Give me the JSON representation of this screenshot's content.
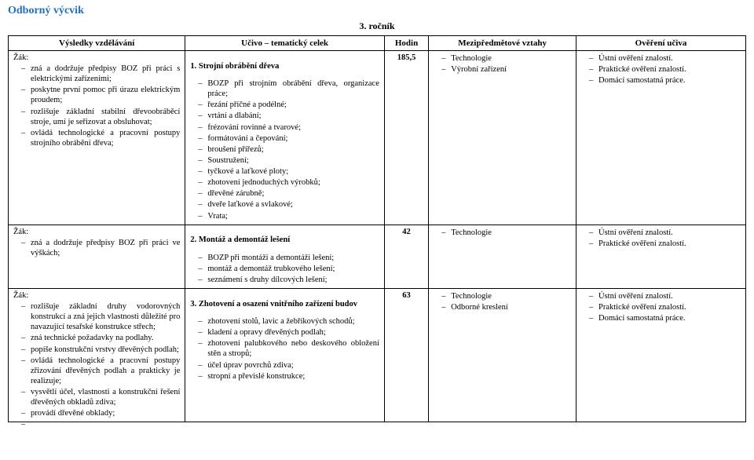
{
  "document": {
    "title": "Odborný výcvik",
    "year": "3. ročník"
  },
  "headers": {
    "vysledky": "Výsledky vzdělávání",
    "ucivo": "Učivo – tematický celek",
    "hodin": "Hodin",
    "mezi": "Mezipředmětové vztahy",
    "over": "Ověření učiva"
  },
  "rows": [
    {
      "zak_label": "Žák:",
      "vysledky": [
        "zná a dodržuje předpisy BOZ při práci s elektrickými zařízeními;",
        "poskytne první pomoc při úrazu elektrickým proudem;",
        "rozlišuje základní stabilní dřevoobráběcí stroje, umí je seřizovat a obsluhovat;",
        "ovládá technologické a pracovní postupy strojního obrábění dřeva;"
      ],
      "ucivo_title": "1.  Strojní obrábění dřeva",
      "ucivo": [
        "BOZP při strojním obrábění dřeva, organizace práce;",
        "řezání příčné a podélné;",
        "vrtání a dlabání;",
        "frézování rovinné a tvarové;",
        "formátování a čepování;",
        "broušení přířezů;",
        "Soustružení;",
        "tyčkové a laťkové ploty;",
        "zhotovení jednoduchých výrobků;",
        "dřevěné zárubně;",
        "dveře laťkové a svlakové;",
        "Vrata;"
      ],
      "hodin": "185,5",
      "mezi": [
        "Technologie",
        "Výrobní zařízení"
      ],
      "over": [
        "Ústní ověření znalostí.",
        "Praktické ověření znalostí.",
        "Domácí samostatná práce."
      ]
    },
    {
      "zak_label": "Žák:",
      "vysledky": [
        "zná a dodržuje předpisy BOZ při práci ve výškách;"
      ],
      "ucivo_title": "2.  Montáž a demontáž lešení",
      "ucivo": [
        "BOZP při montáži a demontáži lešení;",
        "montáž a demontáž trubkového lešení;",
        "seznámení s druhy dílcových lešení;"
      ],
      "hodin": "42",
      "mezi": [
        "Technologie"
      ],
      "over": [
        "Ústní ověření znalostí.",
        "Praktické ověření znalostí."
      ]
    },
    {
      "zak_label": "Žák:",
      "vysledky": [
        "rozlišuje základní druhy vodorovných konstrukcí a zná jejich vlastnosti důležité pro navazující tesařské konstrukce střech;",
        "zná technické požadavky na podlahy.",
        "popíše konstrukční vrstvy dřevěných podlah;",
        "ovládá technologické a pracovní postupy zřizování dřevěných podlah a prakticky je realizuje;",
        "vysvětlí účel, vlastnosti a konstrukční řešení dřevěných obkladů zdiva;",
        "provádí dřevěné obklady;",
        ""
      ],
      "ucivo_title": "3.  Zhotovení a osazení vnitřního zařízení budov",
      "ucivo": [
        "zhotovení stolů, lavic a žebříkových schodů;",
        "kladení a opravy dřevěných podlah;",
        "zhotovení palubkového nebo deskového obložení stěn a stropů;",
        "účel úprav povrchů zdiva;",
        "stropní a převislé konstrukce;"
      ],
      "hodin": "63",
      "mezi": [
        "Technologie",
        "Odborné kreslení"
      ],
      "over": [
        "Ústní ověření znalostí.",
        "Praktické ověření znalostí.",
        "Domácí samostatná práce."
      ]
    }
  ]
}
